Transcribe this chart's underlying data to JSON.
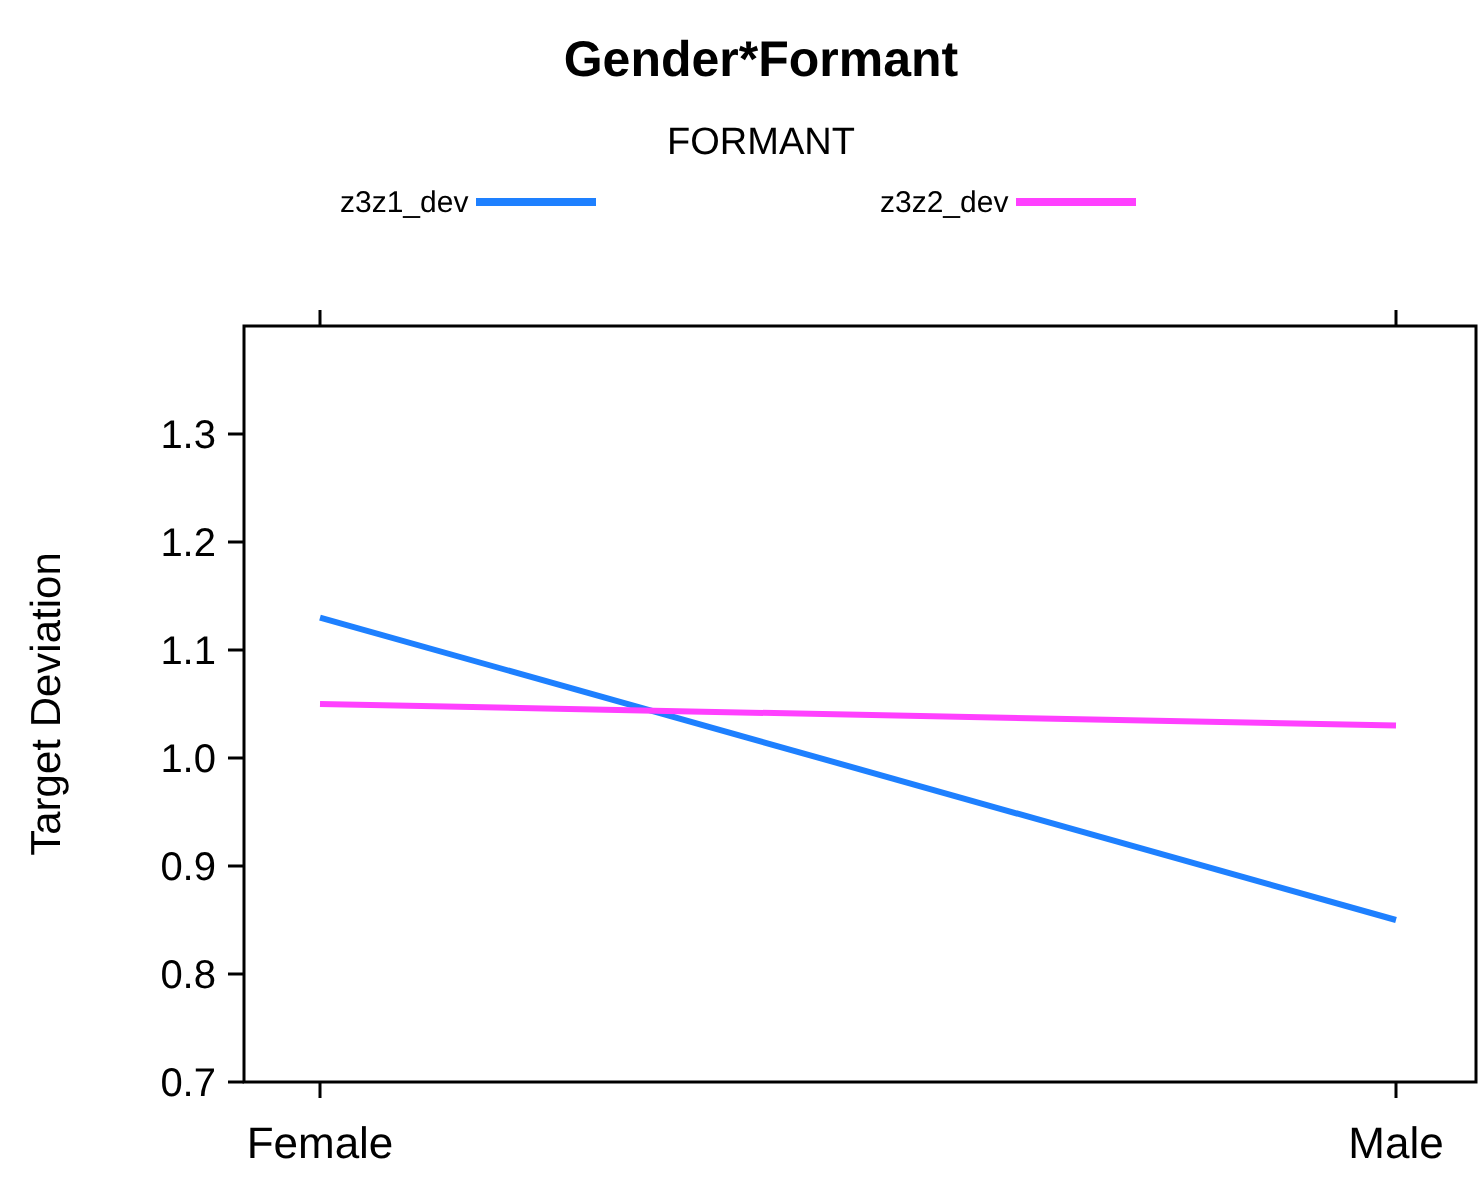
{
  "chart_data": {
    "type": "line",
    "title": "Gender*Formant",
    "legend_title": "FORMANT",
    "ylabel": "Target Deviation",
    "categories": [
      "Female",
      "Male"
    ],
    "series": [
      {
        "name": "z3z1_dev",
        "color": "#1e80ff",
        "values": [
          1.13,
          0.85
        ]
      },
      {
        "name": "z3z2_dev",
        "color": "#ff40ff",
        "values": [
          1.05,
          1.03
        ]
      }
    ],
    "ylim": [
      0.7,
      1.4
    ],
    "yticks": [
      0.7,
      0.8,
      0.9,
      {
        "value": 1,
        "label": "1.0"
      },
      1.1,
      1.2,
      1.3
    ],
    "grid": false,
    "legend": "top",
    "marker": "none",
    "line_style": "solid"
  }
}
